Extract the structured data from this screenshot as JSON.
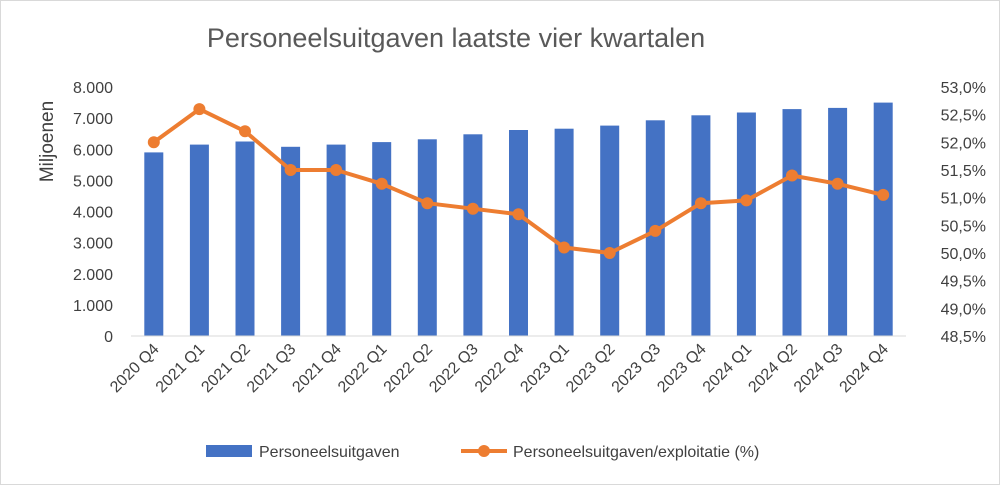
{
  "chart_data": {
    "type": "bar",
    "title": "Personeelsuitgaven laatste vier kwartalen",
    "ylabel": "Miljoenen",
    "y2label": "",
    "categories": [
      "2020 Q4",
      "2021 Q1",
      "2021 Q2",
      "2021 Q3",
      "2021 Q4",
      "2022 Q1",
      "2022 Q2",
      "2022 Q3",
      "2022 Q4",
      "2023 Q1",
      "2023 Q2",
      "2023 Q3",
      "2023 Q4",
      "2024 Q1",
      "2024 Q2",
      "2024 Q3",
      "2024 Q4"
    ],
    "series": [
      {
        "name": "Personeelsuitgaven",
        "type": "bar",
        "axis": "left",
        "color": "#4472c4",
        "values": [
          5900,
          6150,
          6250,
          6080,
          6150,
          6230,
          6320,
          6480,
          6620,
          6660,
          6760,
          6930,
          7090,
          7180,
          7290,
          7330,
          7500
        ]
      },
      {
        "name": "Personeelsuitgaven/exploitatie (%)",
        "type": "line",
        "axis": "right",
        "color": "#ed7d31",
        "values": [
          52.0,
          52.6,
          52.2,
          51.5,
          51.5,
          51.25,
          50.9,
          50.8,
          50.7,
          50.1,
          50.0,
          50.4,
          50.9,
          50.95,
          51.4,
          51.25,
          51.05
        ]
      }
    ],
    "ylim": [
      0,
      8000
    ],
    "yticks": [
      0,
      1000,
      2000,
      3000,
      4000,
      5000,
      6000,
      7000,
      8000
    ],
    "ytick_labels": [
      "0",
      "1.000",
      "2.000",
      "3.000",
      "4.000",
      "5.000",
      "6.000",
      "7.000",
      "8.000"
    ],
    "y2lim": [
      48.5,
      53.0
    ],
    "y2ticks": [
      48.5,
      49.0,
      49.5,
      50.0,
      50.5,
      51.0,
      51.5,
      52.0,
      52.5,
      53.0
    ],
    "y2tick_labels": [
      "48,5%",
      "49,0%",
      "49,5%",
      "50,0%",
      "50,5%",
      "51,0%",
      "51,5%",
      "52,0%",
      "52,5%",
      "53,0%"
    ],
    "grid": false,
    "legend": "bottom"
  }
}
